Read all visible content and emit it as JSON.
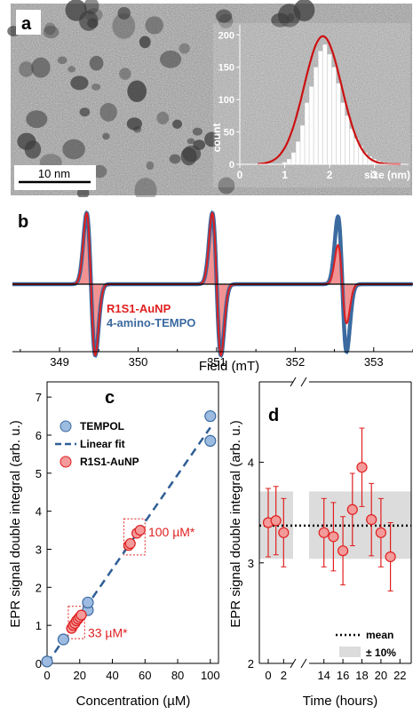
{
  "panel_a": {
    "letter": "a",
    "scale_bar_label": "10 nm",
    "inset": {
      "xlabel": "size (nm)",
      "ylabel": "count",
      "x_ticks": [
        "0",
        "1",
        "2",
        "3"
      ],
      "y_ticks": [
        "0",
        "50",
        "100",
        "150",
        "200"
      ],
      "line_color": "#cc1111"
    }
  },
  "panel_b": {
    "letter": "b",
    "xlabel": "Field (mT)",
    "x_ticks": [
      "349",
      "350",
      "351",
      "352",
      "353"
    ],
    "legend": [
      "R1S1-AuNP",
      "4-amino-TEMPO"
    ],
    "colors": {
      "red": "#e01f1f",
      "blue": "#3b6aa0",
      "fill": "#f08080"
    }
  },
  "panel_c": {
    "letter": "c",
    "xlabel": "Concentration (µM)",
    "ylabel": "EPR signal double integral (arb. u.)",
    "legend": [
      "TEMPOL",
      "Linear fit",
      "R1S1-AuNP"
    ],
    "annotations": [
      "100 µM*",
      "33 µM*"
    ],
    "x_ticks": [
      "0",
      "20",
      "40",
      "60",
      "80",
      "100"
    ],
    "y_ticks": [
      "0",
      "1",
      "2",
      "3",
      "4",
      "5",
      "6",
      "7"
    ]
  },
  "panel_d": {
    "letter": "d",
    "xlabel": "Time (hours)",
    "ylabel": "EPR signal double integral (arb. u.)",
    "legend": [
      "mean",
      "± 10%"
    ],
    "x_ticks_left": [
      "0",
      "2"
    ],
    "x_ticks_right": [
      "14",
      "16",
      "18",
      "20",
      "22"
    ],
    "y_ticks": [
      "2",
      "3",
      "4"
    ]
  },
  "chart_data": [
    {
      "type": "bar",
      "panel": "a-inset",
      "xlabel": "size (nm)",
      "ylabel": "count",
      "ylim": [
        0,
        210
      ],
      "xlim": [
        0,
        3.6
      ],
      "x": [
        1.0,
        1.1,
        1.2,
        1.3,
        1.4,
        1.5,
        1.6,
        1.7,
        1.8,
        1.9,
        2.0,
        2.1,
        2.2,
        2.3,
        2.4,
        2.5,
        2.6,
        2.7,
        2.8,
        2.9,
        3.0,
        3.1,
        3.2,
        3.3
      ],
      "values": [
        3,
        8,
        18,
        35,
        60,
        95,
        120,
        150,
        175,
        185,
        170,
        150,
        125,
        95,
        75,
        55,
        40,
        28,
        18,
        12,
        8,
        5,
        3,
        2
      ],
      "fit": {
        "type": "gaussian",
        "center": 1.85,
        "sigma": 0.42,
        "peak": 198
      }
    },
    {
      "type": "line",
      "panel": "b",
      "xlabel": "Field (mT)",
      "xlim": [
        348.4,
        353.5
      ],
      "series": [
        {
          "name": "4-amino-TEMPO",
          "line_centers": [
            349.4,
            351.0,
            352.6
          ],
          "amplitudes": [
            1.0,
            1.0,
            0.95
          ],
          "width": 0.055
        },
        {
          "name": "R1S1-AuNP",
          "line_centers": [
            349.4,
            351.0,
            352.6
          ],
          "amplitudes": [
            1.0,
            1.0,
            0.55
          ],
          "width": 0.055
        }
      ]
    },
    {
      "type": "scatter",
      "panel": "c",
      "xlabel": "Concentration (µM)",
      "ylabel": "EPR signal double integral (arb. u.)",
      "xlim": [
        0,
        105
      ],
      "ylim": [
        0,
        7.4
      ],
      "series": [
        {
          "name": "TEMPOL",
          "x": [
            0,
            10,
            25,
            25,
            100,
            100
          ],
          "y": [
            0.05,
            0.63,
            1.4,
            1.6,
            6.5,
            5.85
          ]
        },
        {
          "name": "Linear fit",
          "x": [
            0,
            100
          ],
          "y": [
            0.0,
            6.2
          ]
        },
        {
          "name": "R1S1-AuNP",
          "x": [
            15,
            16,
            17,
            18,
            19,
            20,
            21,
            50,
            51,
            55,
            57
          ],
          "y": [
            0.92,
            1.0,
            1.05,
            1.12,
            1.17,
            1.22,
            1.27,
            3.1,
            3.15,
            3.42,
            3.5
          ]
        }
      ]
    },
    {
      "type": "scatter",
      "panel": "d",
      "xlabel": "Time (hours)",
      "ylabel": "EPR signal double integral (arb. u.)",
      "ylim": [
        2,
        4.8
      ],
      "mean": 3.37,
      "band": [
        3.04,
        3.71
      ],
      "series": [
        {
          "name": "points",
          "x": [
            0,
            1,
            2,
            14,
            15,
            16,
            17,
            18,
            19,
            20,
            21
          ],
          "y": [
            3.4,
            3.42,
            3.3,
            3.3,
            3.26,
            3.12,
            3.53,
            3.95,
            3.43,
            3.3,
            3.06
          ],
          "err": [
            0.34,
            0.34,
            0.34,
            0.34,
            0.34,
            0.34,
            0.36,
            0.39,
            0.36,
            0.34,
            0.34
          ]
        }
      ]
    }
  ]
}
